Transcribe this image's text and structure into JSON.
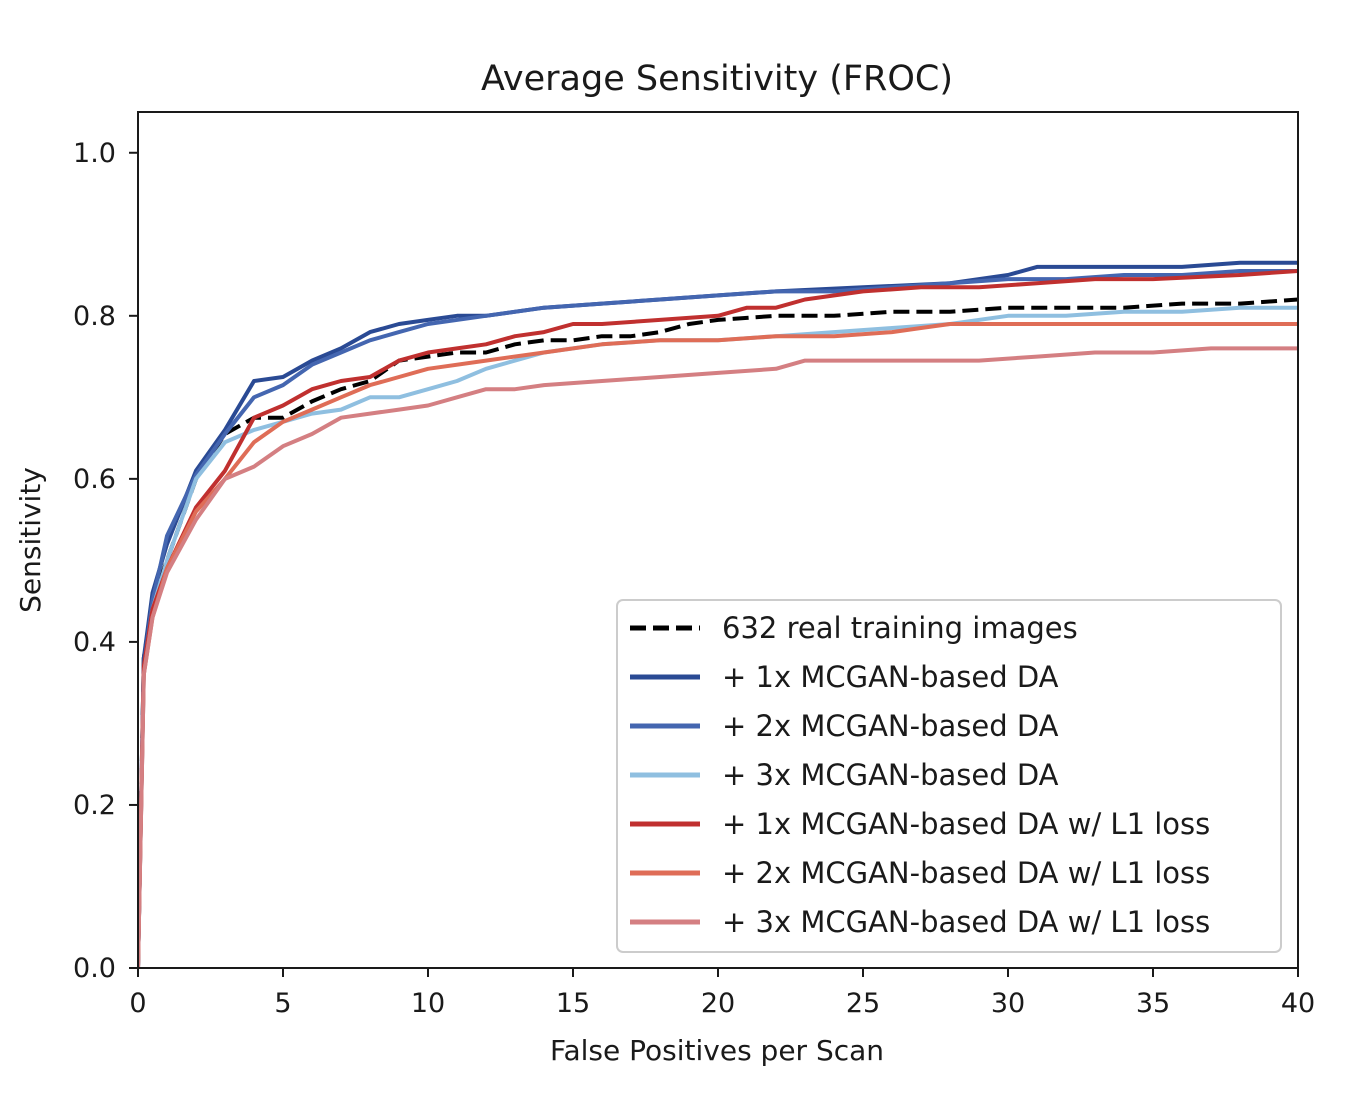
{
  "chart_data": {
    "type": "line",
    "title": "Average Sensitivity (FROC)",
    "xlabel": "False Positives per Scan",
    "ylabel": "Sensitivity",
    "xlim": [
      0,
      40
    ],
    "ylim": [
      0,
      1.05
    ],
    "xticks": [
      "0",
      "5",
      "10",
      "15",
      "20",
      "25",
      "30",
      "35",
      "40"
    ],
    "yticks": [
      "0.0",
      "0.2",
      "0.4",
      "0.6",
      "0.8",
      "1.0"
    ],
    "grid": false,
    "legend_position": "lower-right",
    "series": [
      {
        "name": "632 real training images",
        "color": "#000000",
        "dash": true,
        "x": [
          0,
          0.2,
          0.5,
          1,
          2,
          3,
          4,
          5,
          6,
          7,
          8,
          9,
          10,
          11,
          12,
          13,
          14,
          15,
          16,
          17,
          18,
          19,
          20,
          22,
          24,
          26,
          28,
          30,
          32,
          34,
          36,
          38,
          40
        ],
        "y": [
          0,
          0.38,
          0.45,
          0.5,
          0.6,
          0.655,
          0.675,
          0.675,
          0.695,
          0.71,
          0.72,
          0.745,
          0.75,
          0.755,
          0.755,
          0.765,
          0.77,
          0.77,
          0.775,
          0.775,
          0.78,
          0.79,
          0.795,
          0.8,
          0.8,
          0.805,
          0.805,
          0.81,
          0.81,
          0.81,
          0.815,
          0.815,
          0.82
        ]
      },
      {
        "name": "+ 1x MCGAN-based DA",
        "color": "#2a4a94",
        "dash": false,
        "x": [
          0,
          0.2,
          0.5,
          1,
          2,
          3,
          4,
          5,
          6,
          7,
          8,
          9,
          10,
          11,
          12,
          14,
          16,
          18,
          20,
          22,
          25,
          28,
          30,
          31,
          34,
          36,
          38,
          40
        ],
        "y": [
          0,
          0.38,
          0.46,
          0.52,
          0.61,
          0.66,
          0.72,
          0.725,
          0.745,
          0.76,
          0.78,
          0.79,
          0.795,
          0.8,
          0.8,
          0.81,
          0.815,
          0.82,
          0.825,
          0.83,
          0.835,
          0.84,
          0.85,
          0.86,
          0.86,
          0.86,
          0.865,
          0.865
        ]
      },
      {
        "name": "+ 2x MCGAN-based DA",
        "color": "#4466b0",
        "dash": false,
        "x": [
          0,
          0.2,
          0.5,
          1,
          2,
          3,
          4,
          5,
          6,
          7,
          8,
          9,
          10,
          12,
          14,
          16,
          18,
          20,
          22,
          24,
          26,
          28,
          30,
          32,
          34,
          36,
          38,
          40
        ],
        "y": [
          0,
          0.37,
          0.45,
          0.53,
          0.605,
          0.655,
          0.7,
          0.715,
          0.74,
          0.755,
          0.77,
          0.78,
          0.79,
          0.8,
          0.81,
          0.815,
          0.82,
          0.825,
          0.83,
          0.83,
          0.835,
          0.84,
          0.845,
          0.845,
          0.85,
          0.85,
          0.855,
          0.855
        ]
      },
      {
        "name": "+ 3x MCGAN-based DA",
        "color": "#8fbfe0",
        "dash": false,
        "x": [
          0,
          0.2,
          0.5,
          1,
          2,
          3,
          4,
          5,
          6,
          7,
          8,
          9,
          10,
          11,
          12,
          13,
          14,
          15,
          16,
          18,
          20,
          22,
          24,
          26,
          28,
          30,
          32,
          34,
          36,
          38,
          40
        ],
        "y": [
          0,
          0.36,
          0.44,
          0.5,
          0.6,
          0.645,
          0.66,
          0.67,
          0.68,
          0.685,
          0.7,
          0.7,
          0.71,
          0.72,
          0.735,
          0.745,
          0.755,
          0.76,
          0.765,
          0.77,
          0.77,
          0.775,
          0.78,
          0.785,
          0.79,
          0.8,
          0.8,
          0.805,
          0.805,
          0.81,
          0.81
        ]
      },
      {
        "name": "+ 1x MCGAN-based DA w/ L1 loss",
        "color": "#c0302f",
        "dash": false,
        "x": [
          0,
          0.2,
          0.5,
          1,
          2,
          3,
          4,
          5,
          6,
          7,
          8,
          9,
          10,
          11,
          12,
          13,
          14,
          15,
          16,
          18,
          20,
          21,
          22,
          23,
          25,
          27,
          29,
          31,
          33,
          35,
          38,
          40
        ],
        "y": [
          0,
          0.37,
          0.44,
          0.49,
          0.565,
          0.61,
          0.675,
          0.69,
          0.71,
          0.72,
          0.725,
          0.745,
          0.755,
          0.76,
          0.765,
          0.775,
          0.78,
          0.79,
          0.79,
          0.795,
          0.8,
          0.81,
          0.81,
          0.82,
          0.83,
          0.835,
          0.835,
          0.84,
          0.845,
          0.845,
          0.85,
          0.855
        ]
      },
      {
        "name": "+ 2x MCGAN-based DA w/ L1 loss",
        "color": "#df6d57",
        "dash": false,
        "x": [
          0,
          0.2,
          0.5,
          1,
          2,
          3,
          4,
          5,
          6,
          7,
          8,
          9,
          10,
          12,
          14,
          16,
          18,
          20,
          22,
          24,
          26,
          27,
          28,
          30,
          32,
          34,
          36,
          38,
          40
        ],
        "y": [
          0,
          0.36,
          0.43,
          0.49,
          0.56,
          0.6,
          0.645,
          0.67,
          0.685,
          0.7,
          0.715,
          0.725,
          0.735,
          0.745,
          0.755,
          0.765,
          0.77,
          0.77,
          0.775,
          0.775,
          0.78,
          0.785,
          0.79,
          0.79,
          0.79,
          0.79,
          0.79,
          0.79,
          0.79
        ]
      },
      {
        "name": "+ 3x MCGAN-based DA w/ L1 loss",
        "color": "#d47f82",
        "dash": false,
        "x": [
          0,
          0.2,
          0.5,
          1,
          2,
          3,
          4,
          5,
          6,
          7,
          8,
          9,
          10,
          11,
          12,
          13,
          14,
          16,
          18,
          20,
          22,
          23,
          25,
          27,
          29,
          31,
          33,
          35,
          37,
          40
        ],
        "y": [
          0,
          0.36,
          0.43,
          0.485,
          0.55,
          0.6,
          0.615,
          0.64,
          0.655,
          0.675,
          0.68,
          0.685,
          0.69,
          0.7,
          0.71,
          0.71,
          0.715,
          0.72,
          0.725,
          0.73,
          0.735,
          0.745,
          0.745,
          0.745,
          0.745,
          0.75,
          0.755,
          0.755,
          0.76,
          0.76
        ]
      }
    ]
  }
}
